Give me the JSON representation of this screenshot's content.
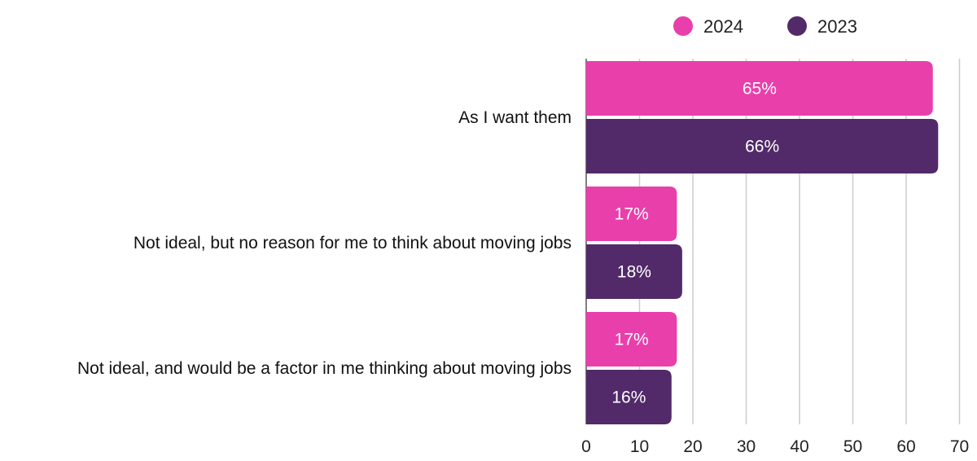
{
  "chart_data": {
    "type": "bar",
    "orientation": "horizontal",
    "title": "",
    "xlabel": "",
    "ylabel": "",
    "categories": [
      "As I want them",
      "Not ideal, but no reason for me to think about moving jobs",
      "Not ideal, and would be a factor in me thinking about moving jobs"
    ],
    "series": [
      {
        "name": "2024",
        "color": "#e83fab",
        "values": [
          65,
          17,
          17
        ],
        "labels": [
          "65%",
          "17%",
          "17%"
        ]
      },
      {
        "name": "2023",
        "color": "#522a69",
        "values": [
          66,
          18,
          16
        ],
        "labels": [
          "66%",
          "18%",
          "16%"
        ]
      }
    ],
    "xlim": [
      0,
      70
    ],
    "xticks": [
      0,
      10,
      20,
      30,
      40,
      50,
      60,
      70
    ],
    "grid": true,
    "legend_position": "top-right"
  }
}
